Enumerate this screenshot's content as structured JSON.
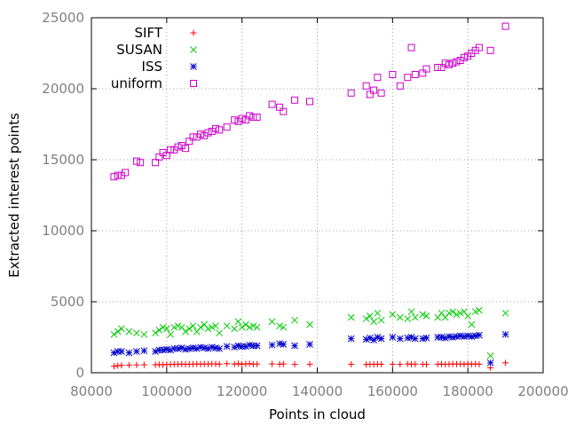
{
  "chart_data": {
    "type": "scatter",
    "xlabel": "Points in cloud",
    "ylabel": "Extracted interest points",
    "xlim": [
      80000,
      200000
    ],
    "ylim": [
      0,
      25000
    ],
    "x_ticks": [
      "80000",
      "100000",
      "120000",
      "140000",
      "160000",
      "180000",
      "200000"
    ],
    "y_ticks": [
      "0",
      "5000",
      "10000",
      "15000",
      "20000",
      "25000"
    ],
    "grid": true,
    "legend_position": "top-left",
    "series": [
      {
        "name": "SIFT",
        "marker": "plus",
        "color": "#ff0000",
        "points": [
          [
            86000,
            450
          ],
          [
            87000,
            500
          ],
          [
            88000,
            520
          ],
          [
            90000,
            540
          ],
          [
            92000,
            550
          ],
          [
            94000,
            560
          ],
          [
            97000,
            560
          ],
          [
            98000,
            580
          ],
          [
            99000,
            560
          ],
          [
            100000,
            580
          ],
          [
            101000,
            590
          ],
          [
            102000,
            600
          ],
          [
            103000,
            600
          ],
          [
            104000,
            610
          ],
          [
            105000,
            590
          ],
          [
            106000,
            600
          ],
          [
            107000,
            610
          ],
          [
            108000,
            620
          ],
          [
            109000,
            600
          ],
          [
            110000,
            620
          ],
          [
            111000,
            610
          ],
          [
            112000,
            630
          ],
          [
            113000,
            620
          ],
          [
            114000,
            600
          ],
          [
            116000,
            640
          ],
          [
            118000,
            610
          ],
          [
            119000,
            640
          ],
          [
            120000,
            600
          ],
          [
            121000,
            620
          ],
          [
            122000,
            640
          ],
          [
            123000,
            600
          ],
          [
            124000,
            610
          ],
          [
            128000,
            620
          ],
          [
            130000,
            600
          ],
          [
            131000,
            620
          ],
          [
            134000,
            590
          ],
          [
            138000,
            600
          ],
          [
            149000,
            600
          ],
          [
            153000,
            580
          ],
          [
            154000,
            600
          ],
          [
            155000,
            590
          ],
          [
            156000,
            610
          ],
          [
            157000,
            600
          ],
          [
            160000,
            600
          ],
          [
            162000,
            590
          ],
          [
            164000,
            620
          ],
          [
            165000,
            600
          ],
          [
            166000,
            610
          ],
          [
            168000,
            600
          ],
          [
            169000,
            590
          ],
          [
            172000,
            600
          ],
          [
            173000,
            610
          ],
          [
            174000,
            590
          ],
          [
            175000,
            600
          ],
          [
            176000,
            620
          ],
          [
            177000,
            610
          ],
          [
            178000,
            620
          ],
          [
            179000,
            600
          ],
          [
            180000,
            630
          ],
          [
            181000,
            600
          ],
          [
            182000,
            620
          ],
          [
            183000,
            600
          ],
          [
            186000,
            350
          ],
          [
            190000,
            700
          ]
        ]
      },
      {
        "name": "SUSAN",
        "marker": "cross",
        "color": "#00cc00",
        "points": [
          [
            86000,
            2700
          ],
          [
            87000,
            2900
          ],
          [
            88000,
            3100
          ],
          [
            90000,
            2900
          ],
          [
            92000,
            2800
          ],
          [
            94000,
            2700
          ],
          [
            97000,
            2800
          ],
          [
            98000,
            3000
          ],
          [
            99000,
            3200
          ],
          [
            100000,
            3100
          ],
          [
            101000,
            2700
          ],
          [
            102000,
            3200
          ],
          [
            103000,
            3300
          ],
          [
            104000,
            3200
          ],
          [
            105000,
            2900
          ],
          [
            106000,
            3100
          ],
          [
            107000,
            3300
          ],
          [
            108000,
            2900
          ],
          [
            109000,
            3200
          ],
          [
            110000,
            3400
          ],
          [
            111000,
            3100
          ],
          [
            112000,
            3200
          ],
          [
            113000,
            3300
          ],
          [
            114000,
            2800
          ],
          [
            116000,
            3300
          ],
          [
            118000,
            3100
          ],
          [
            119000,
            3600
          ],
          [
            120000,
            3200
          ],
          [
            121000,
            3400
          ],
          [
            122000,
            3200
          ],
          [
            123000,
            3300
          ],
          [
            124000,
            3200
          ],
          [
            128000,
            3600
          ],
          [
            130000,
            3300
          ],
          [
            131000,
            3200
          ],
          [
            134000,
            3700
          ],
          [
            138000,
            3400
          ],
          [
            149000,
            3900
          ],
          [
            153000,
            3800
          ],
          [
            154000,
            4000
          ],
          [
            155000,
            3600
          ],
          [
            156000,
            4200
          ],
          [
            157000,
            3700
          ],
          [
            160000,
            4100
          ],
          [
            162000,
            3900
          ],
          [
            164000,
            3800
          ],
          [
            165000,
            4300
          ],
          [
            166000,
            3900
          ],
          [
            168000,
            4100
          ],
          [
            169000,
            4000
          ],
          [
            172000,
            3900
          ],
          [
            173000,
            4200
          ],
          [
            174000,
            3900
          ],
          [
            175000,
            4200
          ],
          [
            176000,
            4300
          ],
          [
            177000,
            4100
          ],
          [
            178000,
            4200
          ],
          [
            179000,
            4300
          ],
          [
            180000,
            4000
          ],
          [
            181000,
            3400
          ],
          [
            182000,
            4300
          ],
          [
            183000,
            4400
          ],
          [
            186000,
            1200
          ],
          [
            190000,
            4200
          ]
        ]
      },
      {
        "name": "ISS",
        "marker": "star",
        "color": "#0000cc",
        "points": [
          [
            86000,
            1400
          ],
          [
            87000,
            1500
          ],
          [
            88000,
            1500
          ],
          [
            90000,
            1400
          ],
          [
            92000,
            1500
          ],
          [
            94000,
            1550
          ],
          [
            97000,
            1500
          ],
          [
            98000,
            1600
          ],
          [
            99000,
            1600
          ],
          [
            100000,
            1650
          ],
          [
            101000,
            1600
          ],
          [
            102000,
            1700
          ],
          [
            103000,
            1700
          ],
          [
            104000,
            1750
          ],
          [
            105000,
            1650
          ],
          [
            106000,
            1700
          ],
          [
            107000,
            1750
          ],
          [
            108000,
            1700
          ],
          [
            109000,
            1800
          ],
          [
            110000,
            1750
          ],
          [
            111000,
            1700
          ],
          [
            112000,
            1800
          ],
          [
            113000,
            1750
          ],
          [
            114000,
            1700
          ],
          [
            116000,
            1850
          ],
          [
            118000,
            1800
          ],
          [
            119000,
            1900
          ],
          [
            120000,
            1850
          ],
          [
            121000,
            1850
          ],
          [
            122000,
            1950
          ],
          [
            123000,
            1900
          ],
          [
            124000,
            1900
          ],
          [
            128000,
            1950
          ],
          [
            130000,
            2050
          ],
          [
            131000,
            2000
          ],
          [
            134000,
            1900
          ],
          [
            138000,
            2000
          ],
          [
            149000,
            2400
          ],
          [
            153000,
            2350
          ],
          [
            154000,
            2450
          ],
          [
            155000,
            2300
          ],
          [
            156000,
            2500
          ],
          [
            157000,
            2400
          ],
          [
            160000,
            2500
          ],
          [
            162000,
            2400
          ],
          [
            164000,
            2450
          ],
          [
            165000,
            2500
          ],
          [
            166000,
            2400
          ],
          [
            168000,
            2400
          ],
          [
            169000,
            2450
          ],
          [
            172000,
            2500
          ],
          [
            173000,
            2500
          ],
          [
            174000,
            2450
          ],
          [
            175000,
            2550
          ],
          [
            176000,
            2500
          ],
          [
            177000,
            2550
          ],
          [
            178000,
            2600
          ],
          [
            179000,
            2550
          ],
          [
            180000,
            2600
          ],
          [
            181000,
            2550
          ],
          [
            182000,
            2600
          ],
          [
            183000,
            2650
          ],
          [
            186000,
            700
          ],
          [
            190000,
            2700
          ]
        ]
      },
      {
        "name": "uniform",
        "marker": "square",
        "color": "#cc00cc",
        "points": [
          [
            86000,
            13800
          ],
          [
            87000,
            13900
          ],
          [
            88000,
            13900
          ],
          [
            89000,
            14100
          ],
          [
            92000,
            14900
          ],
          [
            93000,
            14800
          ],
          [
            97000,
            14800
          ],
          [
            98000,
            15200
          ],
          [
            99000,
            15500
          ],
          [
            100000,
            15300
          ],
          [
            101000,
            15700
          ],
          [
            102000,
            15700
          ],
          [
            103000,
            15900
          ],
          [
            104000,
            16000
          ],
          [
            105000,
            15800
          ],
          [
            106000,
            16300
          ],
          [
            107000,
            16600
          ],
          [
            108000,
            16600
          ],
          [
            109000,
            16800
          ],
          [
            110000,
            16700
          ],
          [
            111000,
            16900
          ],
          [
            112000,
            17000
          ],
          [
            113000,
            17200
          ],
          [
            114000,
            17100
          ],
          [
            116000,
            17300
          ],
          [
            118000,
            17800
          ],
          [
            119000,
            17700
          ],
          [
            120000,
            17900
          ],
          [
            121000,
            17800
          ],
          [
            122000,
            18100
          ],
          [
            123000,
            18000
          ],
          [
            124000,
            18000
          ],
          [
            128000,
            18900
          ],
          [
            130000,
            18700
          ],
          [
            131000,
            18400
          ],
          [
            134000,
            19200
          ],
          [
            138000,
            19100
          ],
          [
            149000,
            19700
          ],
          [
            153000,
            20200
          ],
          [
            154000,
            19600
          ],
          [
            155000,
            19900
          ],
          [
            156000,
            20800
          ],
          [
            157000,
            19700
          ],
          [
            160000,
            21000
          ],
          [
            162000,
            20200
          ],
          [
            164000,
            20800
          ],
          [
            165000,
            22900
          ],
          [
            166000,
            21000
          ],
          [
            168000,
            21100
          ],
          [
            169000,
            21400
          ],
          [
            172000,
            21500
          ],
          [
            173000,
            21500
          ],
          [
            174000,
            21800
          ],
          [
            175000,
            21700
          ],
          [
            176000,
            21800
          ],
          [
            177000,
            21900
          ],
          [
            178000,
            22000
          ],
          [
            179000,
            22200
          ],
          [
            180000,
            22300
          ],
          [
            181000,
            22500
          ],
          [
            182000,
            22700
          ],
          [
            183000,
            22900
          ],
          [
            186000,
            22700
          ],
          [
            190000,
            24400
          ]
        ]
      }
    ]
  }
}
